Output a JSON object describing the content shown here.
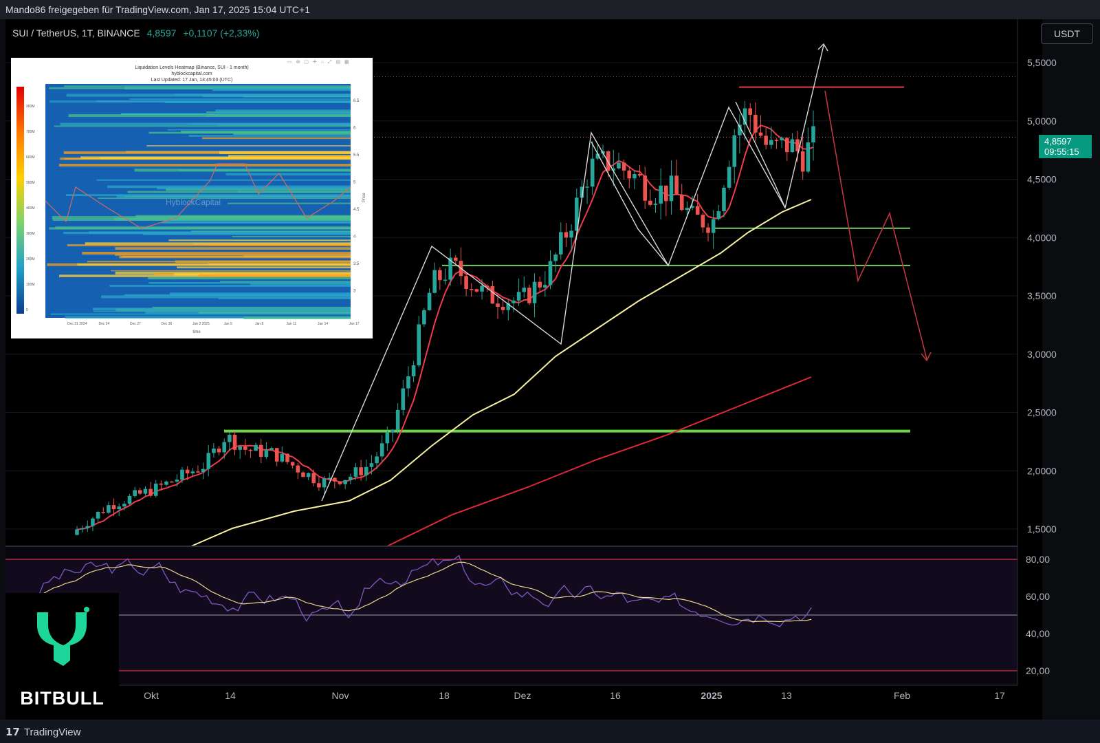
{
  "header": {
    "shared_by": "Mando86 freigegeben für TradingView.com, Jan 17, 2025 15:04 UTC+1"
  },
  "legend": {
    "symbol": "SUI / TetherUS, 1T, BINANCE",
    "price": "4,8597",
    "change": "+0,1107 (+2,33%)"
  },
  "currency_button": "USDT",
  "current_price": {
    "value": "4,8597",
    "countdown": "09:55:15"
  },
  "footer": {
    "brand": "TradingView"
  },
  "logo": {
    "text": "BITBULL",
    "color": "#1ed69a"
  },
  "inset": {
    "title": "Liquidation Levels Heatmap (Binance, SUI - 1 month)",
    "subtitle": "hyblockcapital.com",
    "updated": "Last Updated: 17 Jan, 13:45:00 (UTC)",
    "watermark": "HyblockCapital",
    "x_label": "time",
    "y_label": "Price",
    "x_ticks": [
      "Dec 21 2024",
      "Dec 24",
      "Dec 27",
      "Dec 30",
      "Jan 2 2025",
      "Jan 5",
      "Jan 8",
      "Jan 11",
      "Jan 14",
      "Jan 17"
    ],
    "y_ticks": [
      "6.5",
      "6",
      "5.5",
      "5",
      "4.5",
      "4",
      "3.5",
      "3"
    ],
    "colorbar_ticks": [
      "900M",
      "700M",
      "600M",
      "500M",
      "400M",
      "300M",
      "200M",
      "100M",
      "0"
    ]
  },
  "chart_data": {
    "type": "candlestick",
    "price_axis": {
      "ticks": [
        1.5,
        2.0,
        2.5,
        3.0,
        3.5,
        4.0,
        4.5,
        5.0,
        5.5
      ],
      "tick_labels": [
        "1,5000",
        "2,0000",
        "2,5000",
        "3,0000",
        "3,5000",
        "4,0000",
        "4,5000",
        "5,0000",
        "5,5000"
      ],
      "range": [
        1.35,
        5.9
      ]
    },
    "time_axis": {
      "labels": [
        "Okt",
        "14",
        "Nov",
        "18",
        "Dez",
        "16",
        "2025",
        "13",
        "Feb",
        "17"
      ]
    },
    "colors": {
      "up": "#26a69a",
      "down": "#ef5350",
      "ma_fast": "#ef3b4c",
      "ma_slow": "#f7f1a1",
      "ma_long": "#e0283a",
      "support": "#7bc86c",
      "resistance": "#e33a4a",
      "rsi": "#7e57c2"
    },
    "horizontal_levels": [
      {
        "price": 5.29,
        "color": "#e33a4a"
      },
      {
        "price": 4.08,
        "color": "#7bc86c"
      },
      {
        "price": 3.76,
        "color": "#7bc86c"
      },
      {
        "price": 2.34,
        "color": "#6fd34a"
      }
    ],
    "rsi": {
      "ticks": [
        20,
        40,
        60,
        80
      ],
      "tick_labels": [
        "20,00",
        "40,00",
        "60,00",
        "80,00"
      ],
      "bands": [
        20,
        50,
        80
      ]
    }
  }
}
